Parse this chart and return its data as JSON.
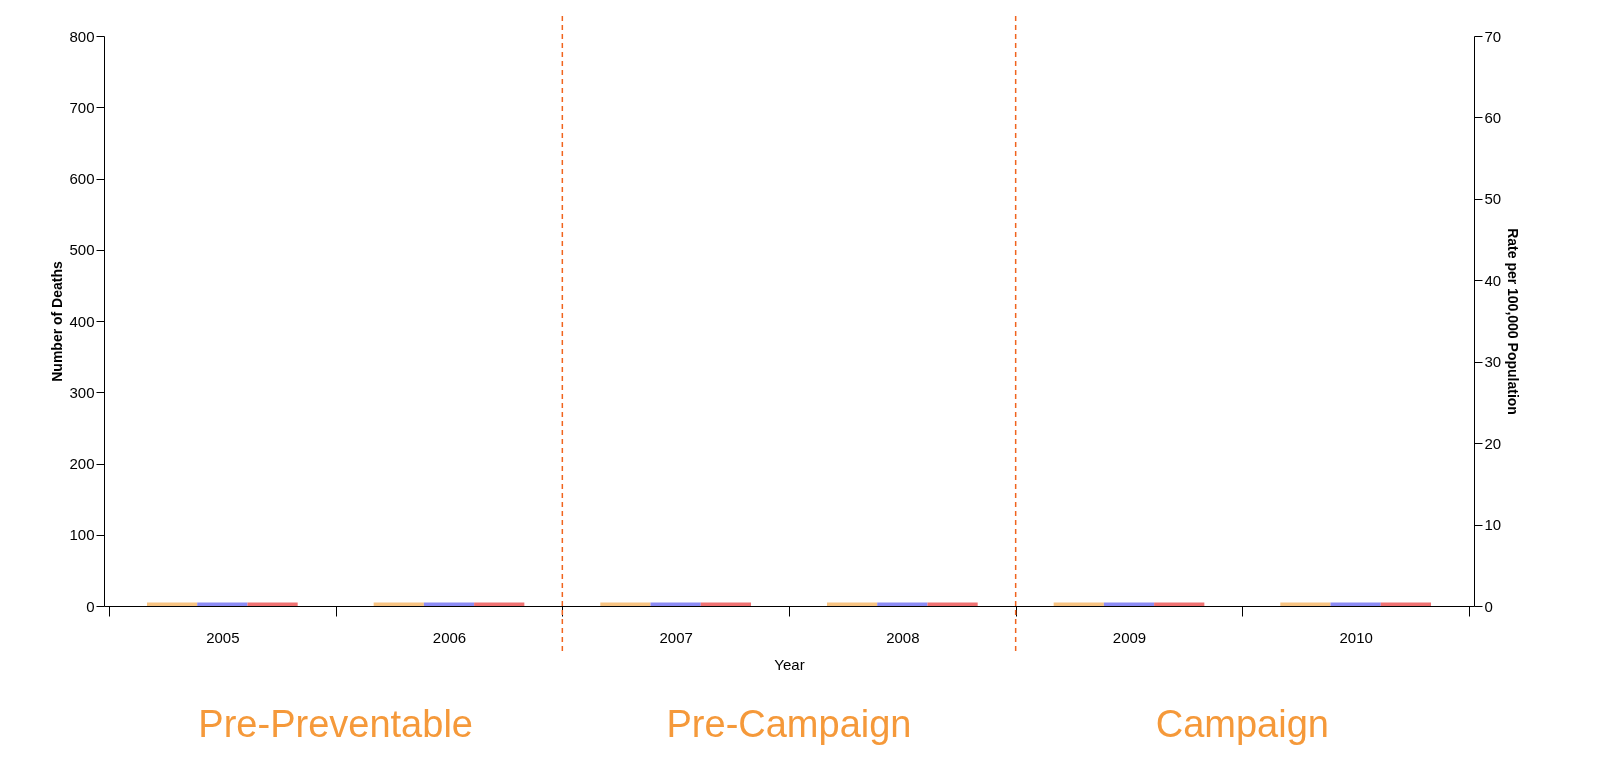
{
  "chart_data": {
    "type": "bar",
    "xlabel": "Year",
    "ylabel": "Number of Deaths",
    "y2label": "Rate per 100,000 Population",
    "x": [
      2005,
      2006,
      2007,
      2008,
      2009,
      2010
    ],
    "xlim": [
      2004.5,
      2010.5
    ],
    "xticks": [
      {
        "value": 2004.5,
        "label": null
      },
      {
        "value": 2005,
        "label": "2005"
      },
      {
        "value": 2005.5,
        "label": null
      },
      {
        "value": 2006,
        "label": "2006"
      },
      {
        "value": 2006.5,
        "label": null
      },
      {
        "value": 2007,
        "label": "2007"
      },
      {
        "value": 2007.5,
        "label": null
      },
      {
        "value": 2008,
        "label": "2008"
      },
      {
        "value": 2008.5,
        "label": null
      },
      {
        "value": 2009,
        "label": "2009"
      },
      {
        "value": 2009.5,
        "label": null
      },
      {
        "value": 2010,
        "label": "2010"
      },
      {
        "value": 2010.5,
        "label": null
      }
    ],
    "series": [
      {
        "color": "#f8c482",
        "values": [
          5,
          5,
          5,
          5,
          5,
          5
        ]
      },
      {
        "color": "#8c8cf5",
        "values": [
          5,
          5,
          5,
          5,
          5,
          5
        ]
      },
      {
        "color": "#f07272",
        "values": [
          5,
          5,
          5,
          5,
          5,
          5
        ]
      }
    ],
    "ylim": [
      0,
      800
    ],
    "yticks": [
      0,
      100,
      200,
      300,
      400,
      500,
      600,
      700,
      800
    ],
    "y2lim": [
      0,
      70
    ],
    "y2ticks": [
      0,
      10,
      20,
      30,
      40,
      50,
      60,
      70
    ],
    "ref_lines": [
      {
        "axis": "x",
        "value": 2006.5,
        "color": "#f0641e",
        "line_style": "dashed"
      },
      {
        "axis": "x",
        "value": 2008.5,
        "color": "#f0641e",
        "line_style": "dashed"
      }
    ],
    "annotations": [
      "Pre-Preventable",
      "Pre-Campaign",
      "Campaign"
    ],
    "grid": false
  }
}
